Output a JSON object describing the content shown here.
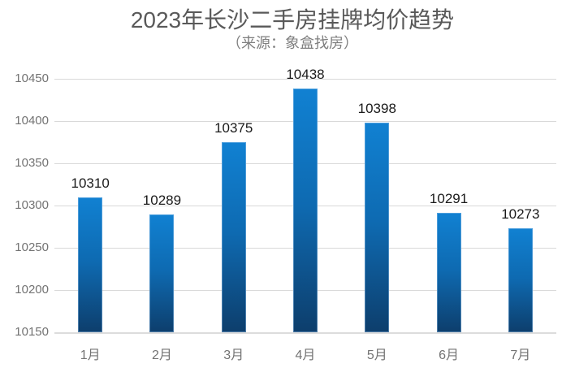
{
  "chart_data": {
    "type": "bar",
    "title": "2023年长沙二手房挂牌均价趋势",
    "subtitle": "（来源：象盒找房）",
    "categories": [
      "1月",
      "2月",
      "3月",
      "4月",
      "5月",
      "6月",
      "7月"
    ],
    "values": [
      10310,
      10289,
      10375,
      10438,
      10398,
      10291,
      10273
    ],
    "xlabel": "",
    "ylabel": "",
    "ylim": [
      10150,
      10450
    ],
    "ytick_step": 50,
    "ytick_labels": [
      "10450",
      "10400",
      "10350",
      "10300",
      "10250",
      "10200",
      "10150"
    ],
    "grid": true,
    "legend": "none",
    "colors": {
      "background": "#ffffff",
      "bar_gradient_top": "#1181d2",
      "bar_gradient_mid": "#0e6ab1",
      "bar_gradient_bottom": "#0d3e6c",
      "gridline": "#d9d9d9",
      "axis_line": "#dcdcdc",
      "title_text": "#595959",
      "subtitle_text": "#7f7f7f",
      "axis_label_text": "#737373",
      "value_label_text": "#1a1a1a"
    }
  }
}
